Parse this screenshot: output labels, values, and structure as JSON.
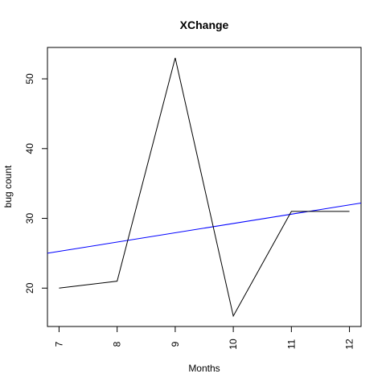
{
  "chart_data": {
    "type": "line",
    "title": "XChange",
    "xlabel": "Months",
    "ylabel": "bug count",
    "x": [
      7,
      8,
      9,
      10,
      11,
      12
    ],
    "series": [
      {
        "values": [
          20,
          21,
          53,
          16,
          31,
          31
        ],
        "color": "#000000"
      }
    ],
    "trend_line": {
      "y_at_xmin": 25.0,
      "y_at_xmax": 32.2,
      "color": "#0000ff"
    },
    "xlim": [
      6.8,
      12.2
    ],
    "ylim": [
      14.5,
      54.5
    ],
    "xticks": [
      7,
      8,
      9,
      10,
      11,
      12
    ],
    "yticks": [
      20,
      30,
      40,
      50
    ],
    "x_tick_labels": [
      "7",
      "8",
      "9",
      "10",
      "11",
      "12"
    ],
    "y_tick_labels": [
      "20",
      "30",
      "40",
      "50"
    ],
    "grid": false,
    "legend": "none"
  }
}
